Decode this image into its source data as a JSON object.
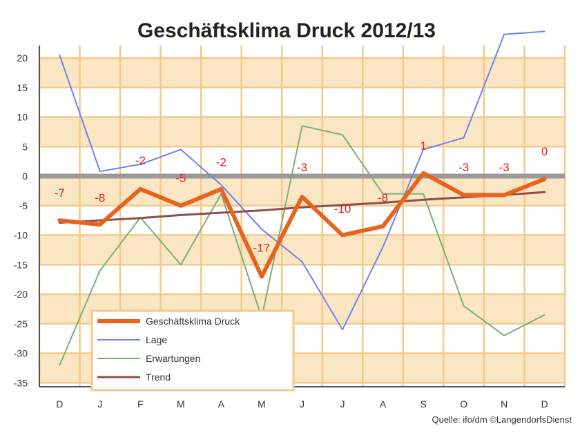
{
  "chart_data": {
    "type": "line",
    "title": "Geschäftsklima Druck 2012/13",
    "source": "Quelle: ifo/dm ©LangendorfsDienst",
    "categories": [
      "D",
      "J",
      "F",
      "M",
      "A",
      "M",
      "J",
      "J",
      "A",
      "S",
      "O",
      "N",
      "D"
    ],
    "ylim": [
      -35,
      23
    ],
    "yticks": [
      20,
      15,
      10,
      5,
      0,
      -5,
      -10,
      -15,
      -20,
      -25,
      -30,
      -35
    ],
    "grid": true,
    "legend_position": "bottom-left",
    "series": [
      {
        "name": "Geschäftsklima Druck",
        "color": "#e8641e",
        "values": [
          -7.5,
          -8.2,
          -2.2,
          -5,
          -2.2,
          -17,
          -3.5,
          -10,
          -8.5,
          0.5,
          -3.2,
          -3.2,
          -0.5
        ]
      },
      {
        "name": "Lage",
        "color": "#6b82f0",
        "values": [
          20.5,
          0.8,
          2,
          4.5,
          -1.5,
          -9,
          -14.5,
          -26,
          -12,
          4.5,
          6.5,
          24,
          24.5
        ]
      },
      {
        "name": "Erwartungen",
        "color": "#7aae7a",
        "values": [
          -32,
          -16,
          -7,
          -15,
          -3,
          -24,
          8.5,
          7,
          -3,
          -3,
          -22,
          -27,
          -23.5
        ]
      },
      {
        "name": "Trend",
        "color": "#8c4f48",
        "values": [
          -7.9,
          -7.5,
          -7.1,
          -6.6,
          -6.2,
          -5.8,
          -5.3,
          -4.9,
          -4.5,
          -4.0,
          -3.6,
          -3.2,
          -2.7
        ]
      }
    ],
    "data_labels": [
      {
        "text": "-7",
        "x": 0,
        "y": -3.5
      },
      {
        "text": "-8",
        "x": 1,
        "y": -4.3
      },
      {
        "text": "-2",
        "x": 2,
        "y": 2.0
      },
      {
        "text": "-5",
        "x": 3,
        "y": -1.0
      },
      {
        "text": "-2",
        "x": 4,
        "y": 1.7
      },
      {
        "text": "-17",
        "x": 5,
        "y": -12.8
      },
      {
        "text": "-3",
        "x": 6,
        "y": 0.8
      },
      {
        "text": "-10",
        "x": 7,
        "y": -6.2
      },
      {
        "text": "-8",
        "x": 8,
        "y": -4.3
      },
      {
        "text": "1",
        "x": 9,
        "y": 4.5
      },
      {
        "text": "-3",
        "x": 10,
        "y": 0.8
      },
      {
        "text": "-3",
        "x": 11,
        "y": 0.8
      },
      {
        "text": "0",
        "x": 12,
        "y": 3.5
      }
    ],
    "colors": {
      "grid": "#f3c98a",
      "band": "#fbe6c4",
      "zero_line": "#9a9a9a",
      "data_label": "#e02020"
    }
  }
}
